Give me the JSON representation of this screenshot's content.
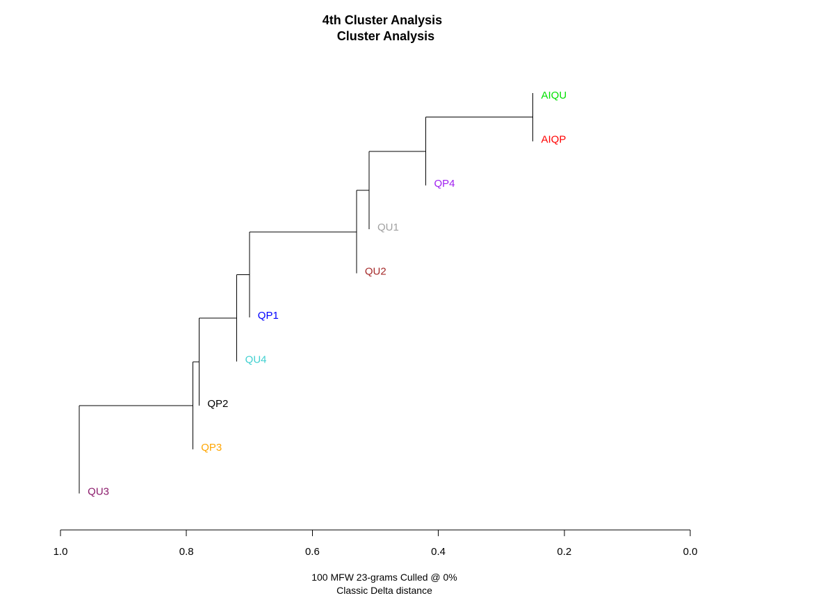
{
  "chart_data": {
    "type": "dendrogram",
    "title": "4th Cluster Analysis",
    "subtitle": "Cluster Analysis",
    "xlabel": "100 MFW 23-grams Culled @ 0%",
    "xlabel2": "Classic Delta distance",
    "xlim": [
      1.0,
      0.0
    ],
    "ticks": [
      {
        "value": 1.0,
        "label": "1.0"
      },
      {
        "value": 0.8,
        "label": "0.8"
      },
      {
        "value": 0.6,
        "label": "0.6"
      },
      {
        "value": 0.4,
        "label": "0.4"
      },
      {
        "value": 0.2,
        "label": "0.2"
      },
      {
        "value": 0.0,
        "label": "0.0"
      }
    ],
    "leaves": [
      {
        "name": "AIQU",
        "color": "#00e000"
      },
      {
        "name": "AIQP",
        "color": "#ff0000"
      },
      {
        "name": "QP4",
        "color": "#a020f0"
      },
      {
        "name": "QU1",
        "color": "#a0a0a0"
      },
      {
        "name": "QU2",
        "color": "#a52a2a"
      },
      {
        "name": "QP1",
        "color": "#0000ff"
      },
      {
        "name": "QU4",
        "color": "#40d0d0"
      },
      {
        "name": "QP2",
        "color": "#000000"
      },
      {
        "name": "QP3",
        "color": "#ffa500"
      },
      {
        "name": "QU3",
        "color": "#8b1a6b"
      }
    ],
    "merges": [
      {
        "id": "n1",
        "left": "AIQU",
        "right": "AIQP",
        "height": 0.25
      },
      {
        "id": "n2",
        "left": "n1",
        "right": "QP4",
        "height": 0.42
      },
      {
        "id": "n3",
        "left": "n2",
        "right": "QU1",
        "height": 0.51
      },
      {
        "id": "n4",
        "left": "n3",
        "right": "QU2",
        "height": 0.53
      },
      {
        "id": "n5",
        "left": "n4",
        "right": "QP1",
        "height": 0.7
      },
      {
        "id": "n6",
        "left": "n5",
        "right": "QU4",
        "height": 0.72
      },
      {
        "id": "n7",
        "left": "n6",
        "right": "QP2",
        "height": 0.78
      },
      {
        "id": "n8",
        "left": "n7",
        "right": "QP3",
        "height": 0.79
      },
      {
        "id": "n9",
        "left": "n8",
        "right": "QU3",
        "height": 0.97
      }
    ]
  }
}
